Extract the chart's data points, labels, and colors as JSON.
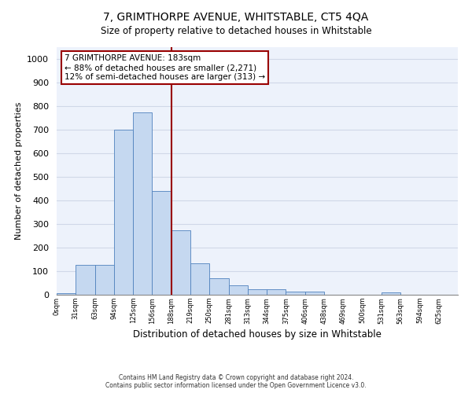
{
  "title": "7, GRIMTHORPE AVENUE, WHITSTABLE, CT5 4QA",
  "subtitle": "Size of property relative to detached houses in Whitstable",
  "xlabel": "Distribution of detached houses by size in Whitstable",
  "ylabel": "Number of detached properties",
  "bar_color": "#c5d8f0",
  "bar_edge_color": "#4f81bd",
  "vline_color": "#990000",
  "vline_x": 6,
  "annotation_text": "7 GRIMTHORPE AVENUE: 183sqm\n← 88% of detached houses are smaller (2,271)\n12% of semi-detached houses are larger (313) →",
  "annotation_box_color": "#ffffff",
  "annotation_box_edge_color": "#990000",
  "bar_values": [
    8,
    126,
    126,
    700,
    775,
    440,
    275,
    133,
    70,
    40,
    23,
    23,
    12,
    12,
    0,
    0,
    0,
    10,
    0,
    0,
    0
  ],
  "x_labels": [
    "0sqm",
    "31sqm",
    "63sqm",
    "94sqm",
    "125sqm",
    "156sqm",
    "188sqm",
    "219sqm",
    "250sqm",
    "281sqm",
    "313sqm",
    "344sqm",
    "375sqm",
    "406sqm",
    "438sqm",
    "469sqm",
    "500sqm",
    "531sqm",
    "563sqm",
    "594sqm",
    "625sqm"
  ],
  "ylim": [
    0,
    1050
  ],
  "yticks": [
    0,
    100,
    200,
    300,
    400,
    500,
    600,
    700,
    800,
    900,
    1000
  ],
  "footer_line1": "Contains HM Land Registry data © Crown copyright and database right 2024.",
  "footer_line2": "Contains public sector information licensed under the Open Government Licence v3.0.",
  "grid_color": "#d0d8e8",
  "background_color": "#edf2fb"
}
